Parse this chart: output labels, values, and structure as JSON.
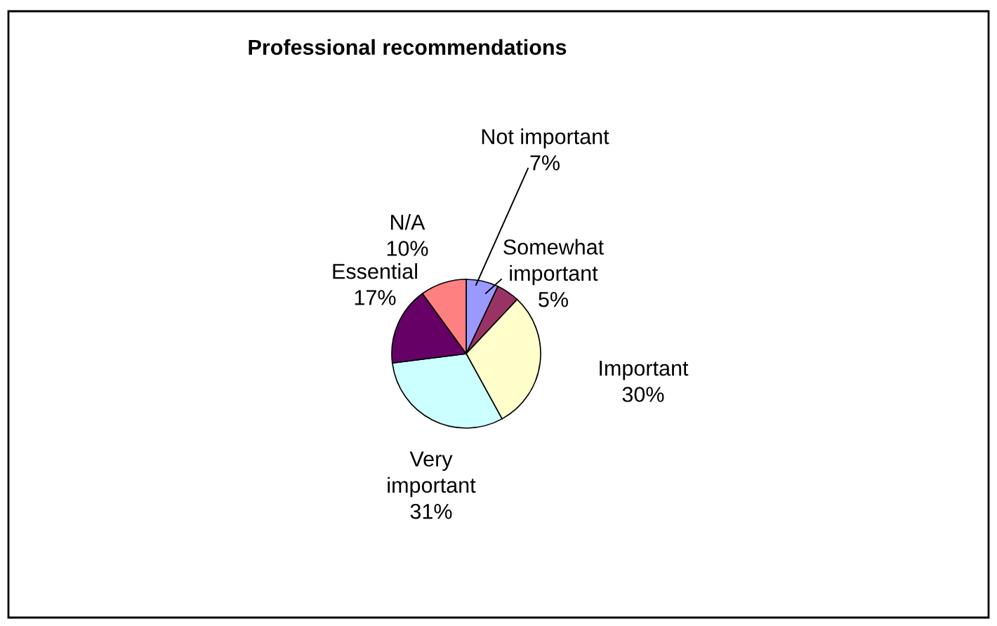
{
  "chart_data": {
    "type": "pie",
    "title": "Professional recommendations",
    "categories": [
      "Not important",
      "Somewhat important",
      "Important",
      "Very important",
      "Essential",
      "N/A"
    ],
    "values": [
      7,
      5,
      30,
      31,
      17,
      10
    ],
    "value_labels": [
      "7%",
      "5%",
      "30%",
      "31%",
      "17%",
      "10%"
    ],
    "colors": [
      "#9999ff",
      "#993366",
      "#ffffcc",
      "#ccffff",
      "#660066",
      "#ff8080"
    ],
    "legend": false
  }
}
